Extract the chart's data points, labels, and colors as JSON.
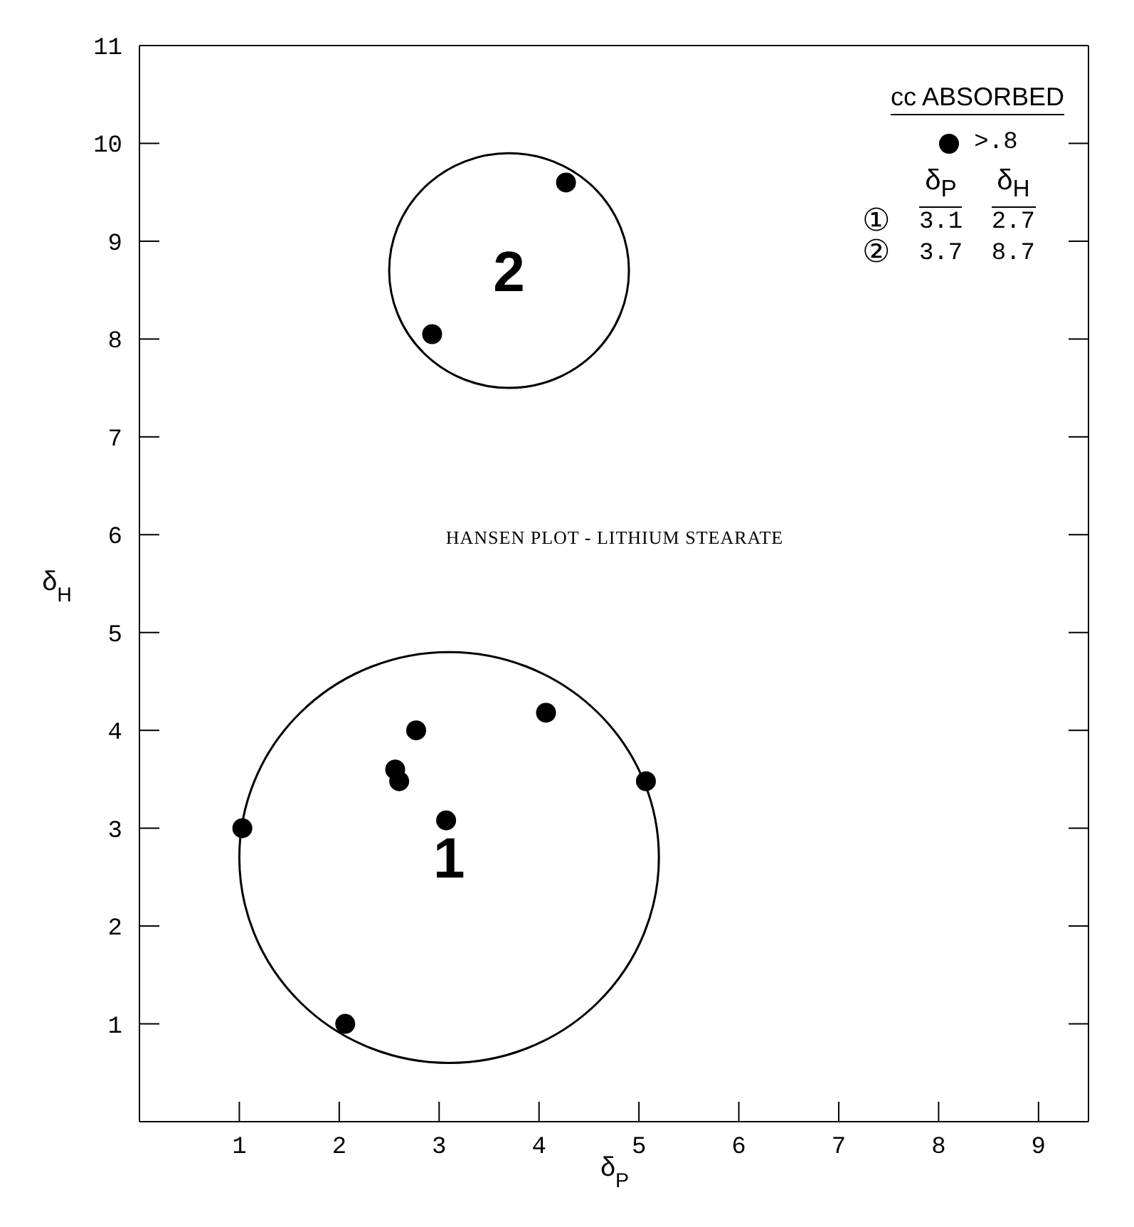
{
  "chart_data": {
    "type": "scatter",
    "title": "HANSEN PLOT - LITHIUM STEARATE",
    "xlabel": "δ$_{P}$",
    "ylabel": "δ$_{H}$",
    "legend_title": "cc ABSORBED",
    "legend": "top right",
    "xlim": [
      0,
      9.5
    ],
    "xticks": [
      1,
      2,
      3,
      4,
      5,
      6,
      7,
      8,
      9
    ],
    "ylim": [
      0,
      11
    ],
    "yticks": [
      1,
      2,
      3,
      4,
      5,
      6,
      7,
      8,
      9,
      10,
      11
    ],
    "series": [
      {
        "name": ">.8",
        "marker": "circle",
        "color": "#000000",
        "x": [
          1.03,
          2.06,
          2.56,
          2.6,
          2.77,
          3.07,
          4.07,
          5.07,
          2.93,
          4.27
        ],
        "values": [
          3.0,
          1.0,
          3.6,
          3.48,
          4.0,
          3.08,
          4.18,
          3.48,
          8.05,
          9.6
        ]
      }
    ],
    "annotations": [
      "1",
      "2",
      "δ$_{P}$",
      "δ$_{H}$",
      "①",
      "3.1",
      "2.7",
      "②",
      "3.7",
      "8.7"
    ]
  }
}
